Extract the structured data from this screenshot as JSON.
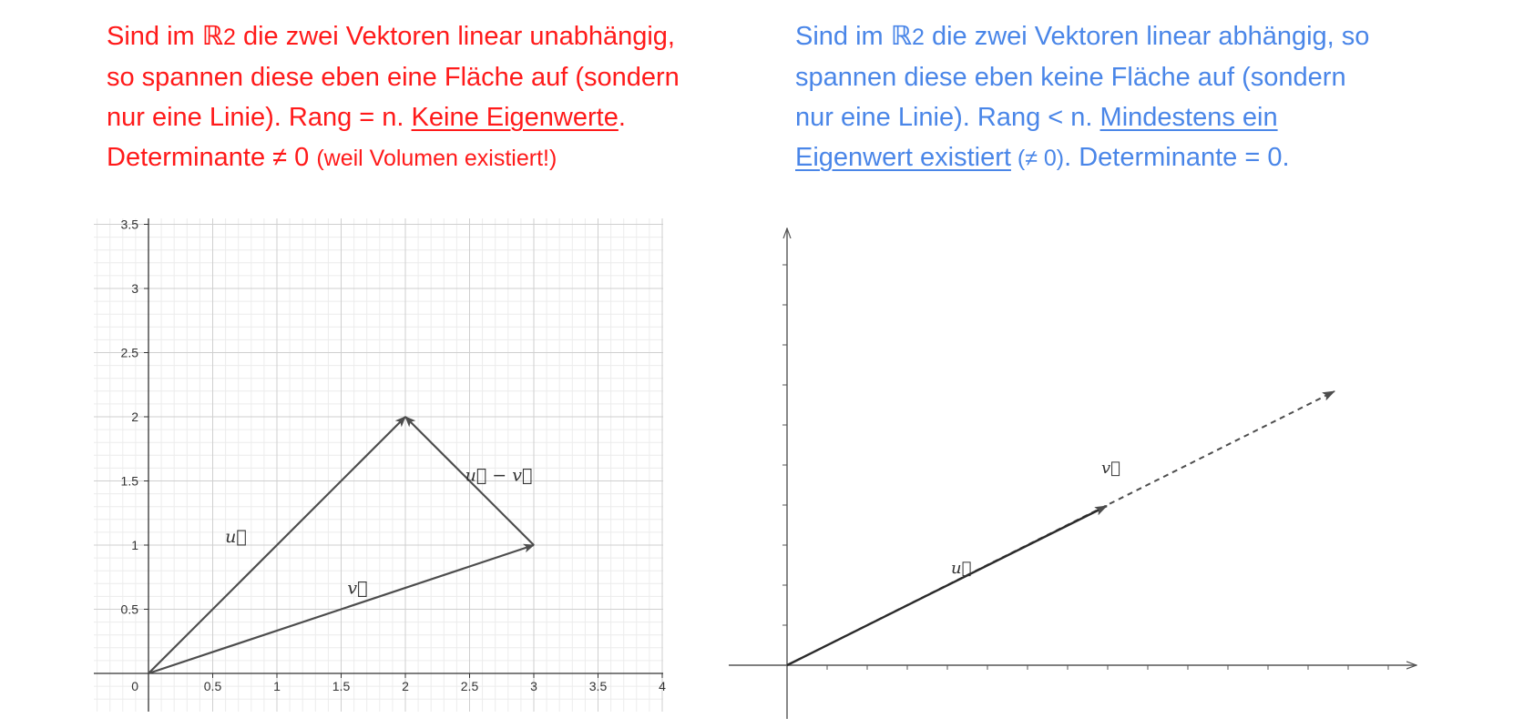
{
  "left_note": {
    "line1_a": "Sind im ",
    "line1_symbol": "ℝ",
    "line1_sub": "2",
    "line1_b": " die zwei Vektoren linear unabhängig,",
    "line2": "so spannen diese eben eine Fläche auf (sondern",
    "line3_a": "nur eine Linie). Rang = n. ",
    "line3_link": "Keine Eigenwerte",
    "line3_b": ".",
    "line4_a": "Determinante ≠ 0 ",
    "line4_small": "(weil Volumen existiert!)"
  },
  "right_note": {
    "line1_a": "Sind im ",
    "line1_symbol": "ℝ",
    "line1_sub": "2",
    "line1_b": " die zwei Vektoren linear abhängig, so",
    "line2": "spannen diese eben keine Fläche auf (sondern",
    "line3_a": "nur eine Linie). Rang < n. ",
    "line3_link": "Mindestens ein",
    "line4_link": "Eigenwert existiert",
    "line4_small": " (≠ 0)",
    "line4_b": ". Determinante = 0."
  },
  "colors": {
    "left_text": "#ff1a1a",
    "right_text": "#4a86e8",
    "vector": "#4d4d4d",
    "grid_major": "#cfcfcf",
    "grid_minor": "#ececec"
  },
  "chart_data": [
    {
      "type": "line",
      "x_ticks": [
        "0.5",
        "1",
        "1.5",
        "2",
        "2.5",
        "3",
        "3.5",
        "4"
      ],
      "y_ticks": [
        "0.5",
        "1",
        "1.5",
        "2",
        "2.5",
        "3",
        "3.5"
      ],
      "origin_label": "0",
      "xlim": [
        -0.4,
        4.0
      ],
      "ylim": [
        -0.3,
        3.5
      ],
      "grid": true,
      "vectors": [
        {
          "name": "u",
          "label": "u⃗",
          "from": [
            0,
            0
          ],
          "to": [
            2,
            2
          ]
        },
        {
          "name": "v",
          "label": "v⃗",
          "from": [
            0,
            0
          ],
          "to": [
            3,
            1
          ]
        },
        {
          "name": "u-v",
          "label": "u⃗ − v⃗",
          "from": [
            3,
            1
          ],
          "to": [
            2,
            2
          ]
        }
      ]
    },
    {
      "type": "line",
      "grid": false,
      "vectors": [
        {
          "name": "u",
          "label": "u⃗",
          "style": "solid"
        },
        {
          "name": "v",
          "label": "v⃗",
          "style": "dashed"
        }
      ]
    }
  ]
}
